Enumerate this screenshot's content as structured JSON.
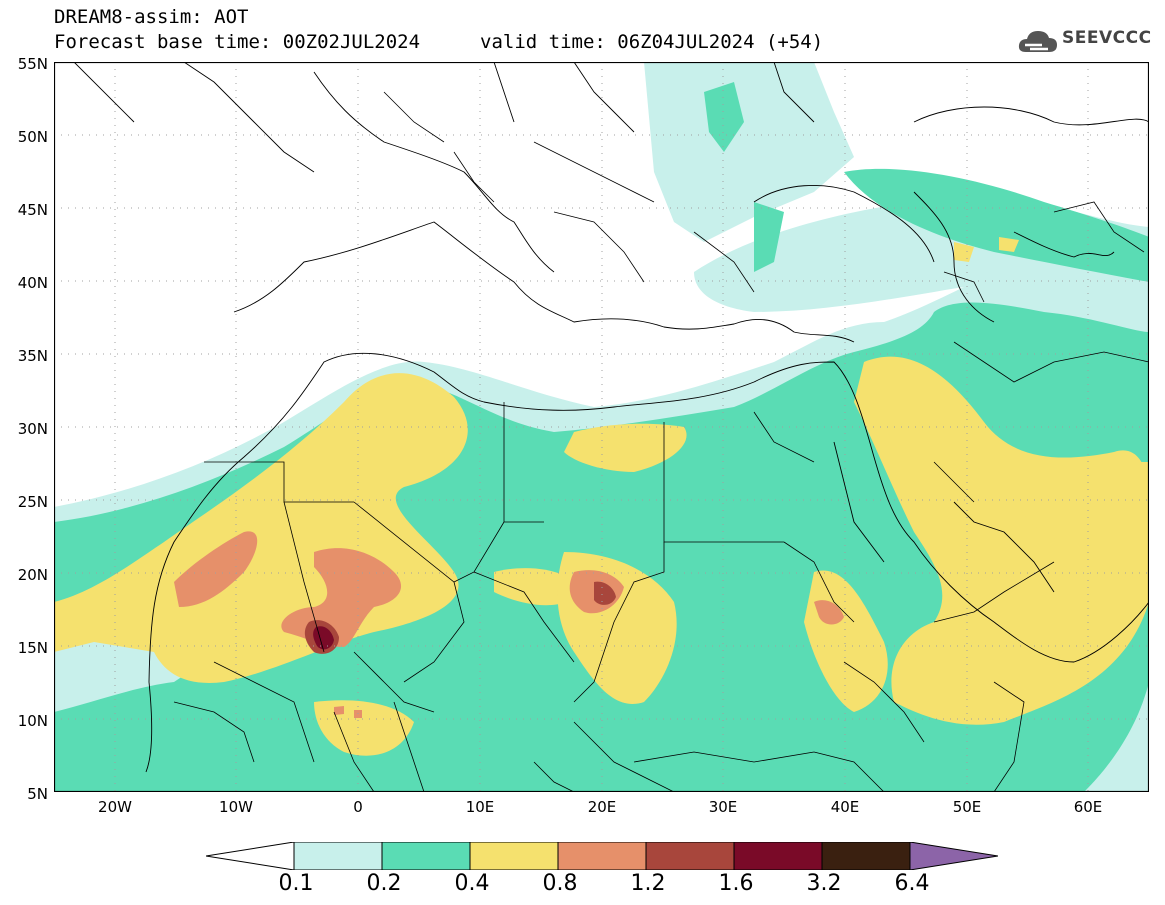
{
  "header": {
    "title": "DREAM8-assim: AOT",
    "base_time": "Forecast base time: 00Z02JUL2024",
    "valid_time": "valid time: 06Z04JUL2024 (+54)"
  },
  "logo": {
    "text": "SEEVCCC",
    "icon": "cloud-icon"
  },
  "map": {
    "variable": "AOT",
    "lon_range": [
      -25,
      65
    ],
    "lat_range": [
      5,
      55
    ],
    "graticule": "dotted",
    "lat_labels": [
      "5N",
      "10N",
      "15N",
      "20N",
      "25N",
      "30N",
      "35N",
      "40N",
      "45N",
      "50N",
      "55N"
    ],
    "lon_labels": [
      "20W",
      "10W",
      "0",
      "10E",
      "20E",
      "30E",
      "40E",
      "50E",
      "60E"
    ]
  },
  "legend": {
    "labels": [
      "0.1",
      "0.2",
      "0.4",
      "0.8",
      "1.2",
      "1.6",
      "3.2",
      "6.4"
    ],
    "colors": [
      "#ffffff",
      "#c8f0eb",
      "#5adcb4",
      "#f5e16e",
      "#e6906a",
      "#a8463c",
      "#7a0a28",
      "#3a2010",
      "#8c64a8"
    ]
  },
  "colors": {
    "level_01": "#c8f0eb",
    "level_02": "#5adcb4",
    "level_04": "#f5e16e",
    "level_08": "#e6906a",
    "level_12": "#a8463c",
    "level_16": "#7a0a28"
  }
}
